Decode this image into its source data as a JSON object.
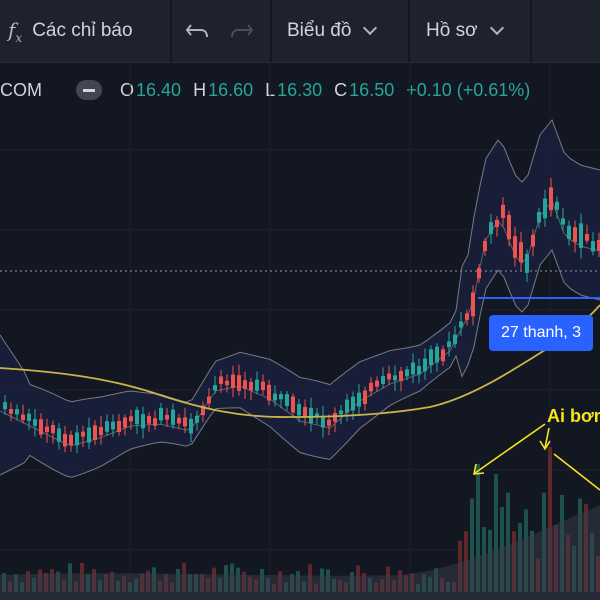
{
  "toolbar": {
    "indicators_label": "Các chỉ báo",
    "chart_menu_label": "Biểu đồ",
    "profile_menu_label": "Hồ sơ",
    "fx_glyph": "fx"
  },
  "legend": {
    "symbol": "COM",
    "open_label": "O",
    "open_value": "16.40",
    "high_label": "H",
    "high_value": "16.60",
    "low_label": "L",
    "low_value": "16.30",
    "close_label": "C",
    "close_value": "16.50",
    "change": "+0.10 (+0.61%)"
  },
  "tooltip_text": "27 thanh, 3",
  "annotation_text": "Ai bơm",
  "colors": {
    "background": "#131722",
    "toolbar": "#1e222d",
    "up_candle": "#26a69a",
    "down_candle": "#ef5350",
    "moving_average": "#c9b44a",
    "bollinger_band": "#787b86",
    "measure_line": "#2962ff",
    "annotation": "#f5e51b"
  },
  "icons": [
    "fx-icon",
    "undo-icon",
    "redo-icon",
    "chevron-down-icon",
    "minus-icon"
  ]
}
